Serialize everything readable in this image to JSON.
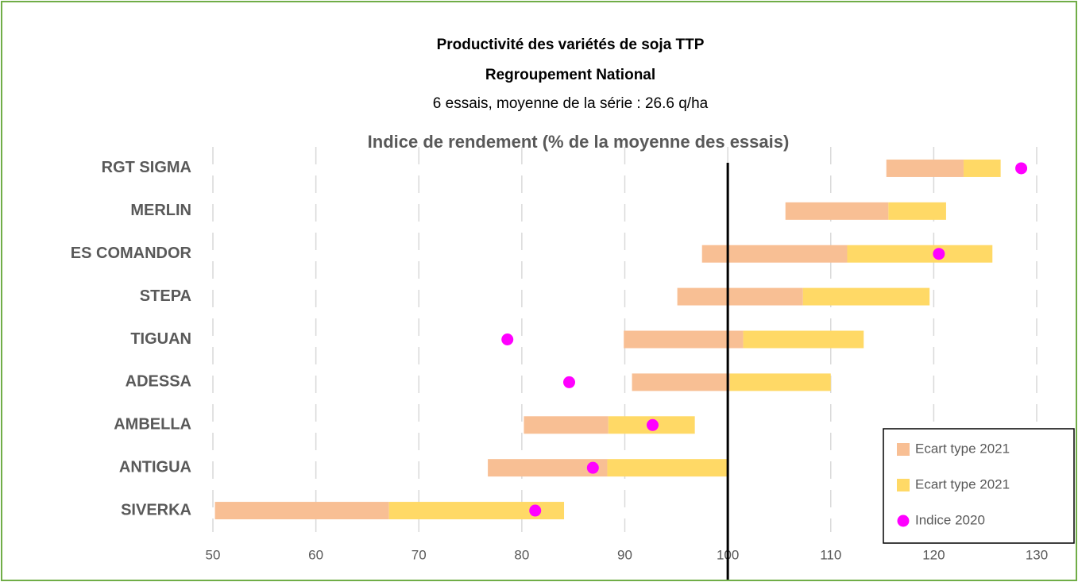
{
  "chart_data": {
    "type": "range-bar",
    "title": "Productivité des variétés de soja TTP",
    "subtitle": "Regroupement National",
    "subtitle2": "6 essais, moyenne de la série : 26.6 q/ha",
    "axis_title": "Indice de rendement (% de la moyenne des essais)",
    "categories": [
      "RGT SIGMA",
      "MERLIN",
      "ES COMANDOR",
      "STEPA",
      "TIGUAN",
      "ADESSA",
      "AMBELLA",
      "ANTIGUA",
      "SIVERKA"
    ],
    "series": [
      {
        "name": "Ecart type 2021",
        "color": "#f8bf94",
        "start": [
          115.4,
          105.6,
          97.5,
          95.1,
          89.9,
          90.7,
          80.2,
          76.7,
          50.2
        ],
        "end": [
          122.9,
          115.6,
          111.6,
          107.3,
          101.5,
          100.2,
          88.4,
          88.3,
          67.1
        ]
      },
      {
        "name": "Ecart type 2021",
        "color": "#ffd966",
        "start": [
          122.9,
          115.6,
          111.6,
          107.3,
          101.5,
          100.2,
          88.4,
          88.3,
          67.1
        ],
        "end": [
          126.5,
          121.2,
          125.7,
          119.6,
          113.2,
          110.0,
          96.8,
          100.1,
          84.1
        ]
      },
      {
        "name": "Indice 2020",
        "color": "#ff00ff",
        "values": [
          128.5,
          null,
          120.5,
          null,
          78.6,
          84.6,
          92.7,
          86.9,
          81.3
        ]
      }
    ],
    "reference": 100,
    "xlim": [
      50,
      130
    ],
    "xticks": [
      50,
      60,
      70,
      80,
      90,
      100,
      110,
      120,
      130
    ],
    "grid": true,
    "legend": "lower right"
  }
}
